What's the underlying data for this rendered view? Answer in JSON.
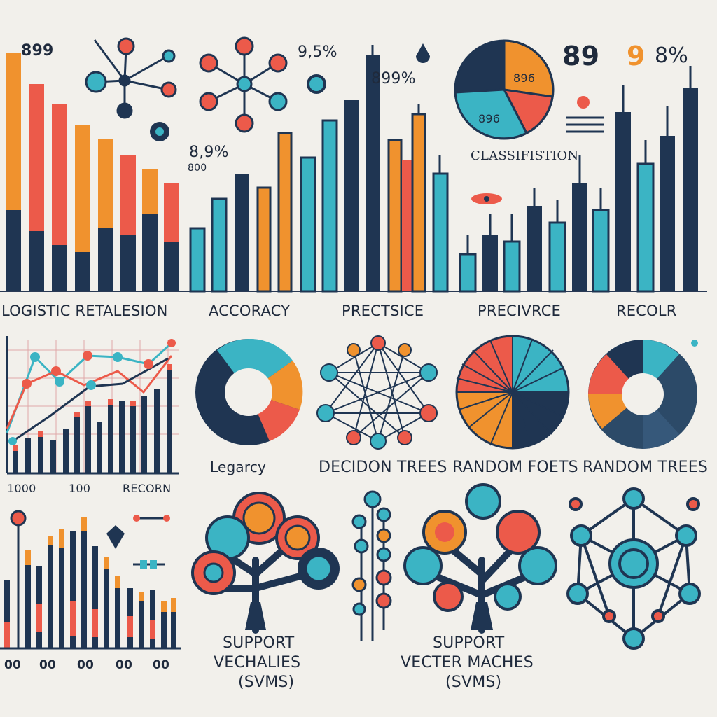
{
  "colors": {
    "navy": "#1f3552",
    "teal": "#3bb4c4",
    "orange": "#f0922e",
    "red": "#ec5a4a",
    "background": "#f2f0eb"
  },
  "top_labels": {
    "logistic": "LOGISTIC RETALESION",
    "accuracy": "ACCORACY",
    "precision": "PRECTSICE",
    "precurve": "PRECIVRCE",
    "recall": "RECOLR"
  },
  "top_annotations": {
    "a1": "899",
    "a2": "9,5%",
    "a3": "899%",
    "a4": "8,9%",
    "a5": "800",
    "a6": "89",
    "a7": "9",
    "a8": "8%",
    "pie_big": "896",
    "pie_small": "896",
    "classification": "CLASSIFISTION"
  },
  "mid_labels": {
    "legacy": "Legarcy",
    "decision": "DECIDON TREES",
    "forests": "RANDOM FOETS",
    "trees": "RANDOM TREES"
  },
  "mid_axis": {
    "n1": "1000",
    "n2": "100",
    "recorn": "RECORN"
  },
  "bottom_labels": {
    "svm1_l1": "SUPPORT",
    "svm1_l2": "VECHALIES",
    "svm1_l3": "(SVMS)",
    "svm2_l1": "SUPPORT",
    "svm2_l2": "VECTER MACHES",
    "svm2_l3": "(SVMS)"
  },
  "bottom_axis": {
    "t1": "00",
    "t2": "00",
    "t3": "00",
    "t4": "00",
    "t5": "00"
  }
}
